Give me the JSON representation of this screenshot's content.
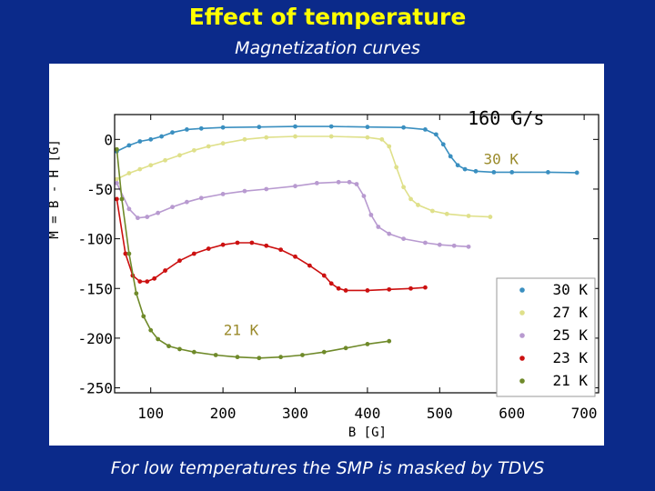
{
  "slide": {
    "title": "Effect of temperature",
    "subtitle": "Magnetization curves",
    "footer": "For low temperatures the SMP is masked by TDVS"
  },
  "colors": {
    "background": "#0b2a8a",
    "title": "#ffff00",
    "annotation": "#9a8a2a"
  },
  "chart_data": {
    "type": "line",
    "xlabel": "B [G]",
    "ylabel": "M = B - H [G]",
    "xlim": [
      50,
      720
    ],
    "ylim": [
      -255,
      25
    ],
    "xticks": [
      100,
      200,
      300,
      400,
      500,
      600,
      700
    ],
    "yticks": [
      0,
      -50,
      -100,
      -150,
      -200,
      -250
    ],
    "grid": false,
    "legend_position": "bottom-right",
    "annotations": [
      {
        "text": "160 G/s",
        "x": 645,
        "y": 15
      },
      {
        "text": "30 K",
        "x": 585,
        "y": -25
      },
      {
        "text": "21 K",
        "x": 225,
        "y": -197
      }
    ],
    "series": [
      {
        "name": "30 K",
        "color": "#3a8fc0",
        "x": [
          53,
          70,
          85,
          100,
          115,
          130,
          150,
          170,
          200,
          250,
          300,
          350,
          400,
          450,
          480,
          495,
          505,
          515,
          525,
          535,
          550,
          575,
          600,
          650,
          690
        ],
        "y": [
          -12,
          -6,
          -2,
          0,
          3,
          7,
          10,
          11,
          12,
          12.5,
          13,
          13,
          12.5,
          12,
          10,
          5,
          -5,
          -17,
          -26,
          -30,
          -32,
          -33,
          -33,
          -33,
          -33.5
        ]
      },
      {
        "name": "27 K",
        "color": "#dfe08a",
        "x": [
          53,
          70,
          85,
          100,
          120,
          140,
          160,
          180,
          200,
          230,
          260,
          300,
          350,
          400,
          420,
          430,
          440,
          450,
          460,
          470,
          490,
          510,
          540,
          570
        ],
        "y": [
          -40,
          -34,
          -30,
          -26,
          -21,
          -16,
          -11,
          -7,
          -4,
          0,
          2,
          3,
          3,
          2,
          0,
          -7,
          -28,
          -48,
          -60,
          -66,
          -72,
          -75,
          -77,
          -78
        ]
      },
      {
        "name": "25 K",
        "color": "#b89ad0",
        "x": [
          53,
          70,
          82,
          95,
          110,
          130,
          150,
          170,
          200,
          230,
          260,
          300,
          330,
          360,
          375,
          385,
          395,
          405,
          415,
          430,
          450,
          480,
          500,
          520,
          540
        ],
        "y": [
          -44,
          -70,
          -79,
          -78,
          -74,
          -68,
          -63,
          -59,
          -55,
          -52,
          -50,
          -47,
          -44,
          -43,
          -43,
          -45,
          -57,
          -76,
          -88,
          -95,
          -100,
          -104,
          -106,
          -107,
          -108
        ]
      },
      {
        "name": "23 K",
        "color": "#cc1010",
        "x": [
          53,
          65,
          75,
          85,
          95,
          105,
          120,
          140,
          160,
          180,
          200,
          220,
          240,
          260,
          280,
          300,
          320,
          340,
          350,
          360,
          370,
          400,
          430,
          460,
          480
        ],
        "y": [
          -60,
          -115,
          -137,
          -143,
          -143,
          -140,
          -132,
          -122,
          -115,
          -110,
          -106,
          -104,
          -104,
          -107,
          -111,
          -118,
          -127,
          -137,
          -145,
          -150,
          -152,
          -152,
          -151,
          -150,
          -149
        ]
      },
      {
        "name": "21 K",
        "color": "#6f8a2a",
        "x": [
          53,
          60,
          70,
          80,
          90,
          100,
          110,
          125,
          140,
          160,
          190,
          220,
          250,
          280,
          310,
          340,
          370,
          400,
          430
        ],
        "y": [
          -10,
          -60,
          -115,
          -155,
          -178,
          -192,
          -201,
          -208,
          -211,
          -214,
          -217,
          -219,
          -220,
          -219,
          -217,
          -214,
          -210,
          -206,
          -203
        ]
      }
    ]
  }
}
